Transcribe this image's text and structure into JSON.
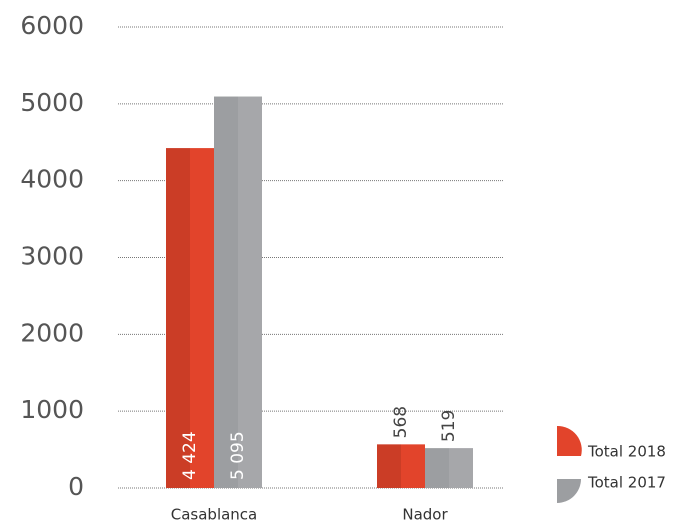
{
  "chart_data": {
    "type": "bar",
    "categories": [
      "Casablanca",
      "Nador"
    ],
    "series": [
      {
        "name": "Total 2018",
        "color": "#e2442b",
        "values": [
          4424,
          568
        ],
        "value_labels": [
          "4 424",
          "568"
        ]
      },
      {
        "name": "Total 2017",
        "color": "#9c9ea1",
        "values": [
          5095,
          519
        ],
        "value_labels": [
          "5 095",
          "519"
        ]
      }
    ],
    "ylim": [
      0,
      6000
    ],
    "yticks": [
      0,
      1000,
      2000,
      3000,
      4000,
      5000,
      6000
    ],
    "grid": true,
    "legend": "bottom-right"
  }
}
